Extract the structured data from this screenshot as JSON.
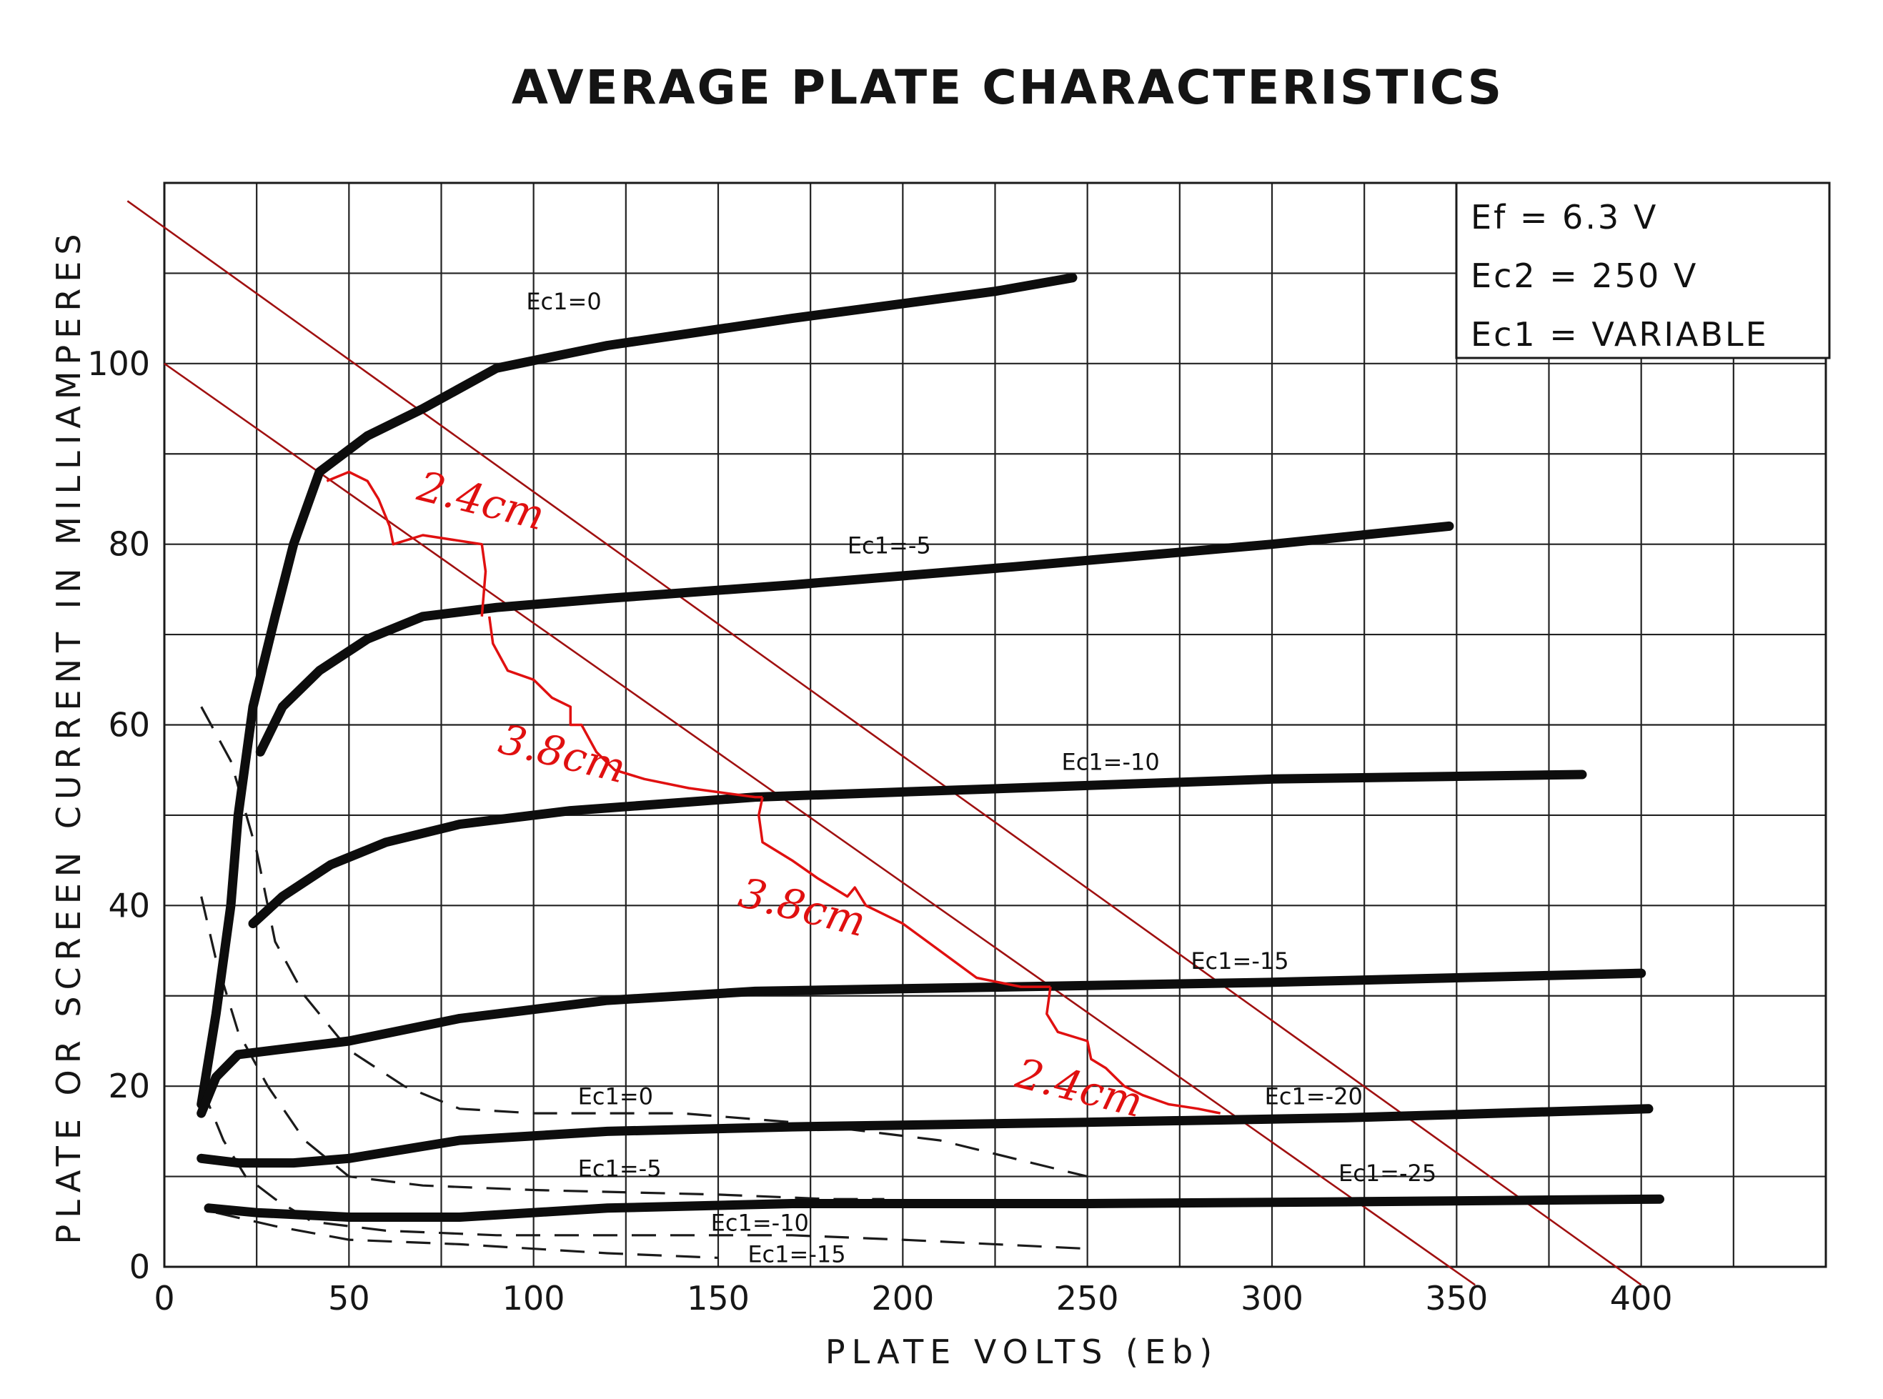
{
  "chart_data": {
    "type": "line",
    "title": "AVERAGE PLATE CHARACTERISTICS",
    "xlabel": "PLATE VOLTS (Eb)",
    "ylabel": "PLATE OR SCREEN CURRENT IN MILLIAMPERES",
    "xlim": [
      0,
      450
    ],
    "ylim": [
      0,
      120
    ],
    "x_ticks": [
      0,
      50,
      100,
      150,
      200,
      250,
      300,
      350,
      400
    ],
    "x_tick_labels": [
      "0",
      "50",
      "100",
      "150",
      "200",
      "250",
      "300",
      "350",
      "400"
    ],
    "y_ticks": [
      0,
      20,
      40,
      60,
      80,
      100
    ],
    "y_tick_labels": [
      "0",
      "20",
      "40",
      "60",
      "80",
      "100"
    ],
    "grid": true,
    "parameters": [
      "Ef  =  6.3 V",
      "Ec2  =  250 V",
      "Ec1 = VARIABLE"
    ],
    "plate_curves": [
      {
        "label": "Ec1=0",
        "label_at": [
          98,
          106
        ],
        "points": [
          [
            10,
            18
          ],
          [
            14,
            28
          ],
          [
            18,
            40
          ],
          [
            20,
            50
          ],
          [
            24,
            62
          ],
          [
            30,
            72
          ],
          [
            35,
            80
          ],
          [
            42,
            88
          ],
          [
            55,
            92
          ],
          [
            70,
            95
          ],
          [
            90,
            99.5
          ],
          [
            120,
            102
          ],
          [
            170,
            105
          ],
          [
            225,
            108
          ],
          [
            246,
            109.5
          ]
        ]
      },
      {
        "label": "Ec1=-5",
        "label_at": [
          185,
          79
        ],
        "points": [
          [
            26,
            57
          ],
          [
            32,
            62
          ],
          [
            42,
            66
          ],
          [
            55,
            69.5
          ],
          [
            70,
            72
          ],
          [
            90,
            73
          ],
          [
            120,
            74
          ],
          [
            170,
            75.5
          ],
          [
            230,
            77.5
          ],
          [
            300,
            80
          ],
          [
            348,
            82
          ]
        ]
      },
      {
        "label": "Ec1=-10",
        "label_at": [
          243,
          55
        ],
        "points": [
          [
            24,
            38
          ],
          [
            32,
            41
          ],
          [
            45,
            44.5
          ],
          [
            60,
            47
          ],
          [
            80,
            49
          ],
          [
            110,
            50.5
          ],
          [
            160,
            52
          ],
          [
            230,
            53
          ],
          [
            300,
            54
          ],
          [
            384,
            54.5
          ]
        ]
      },
      {
        "label": "Ec1=-15",
        "label_at": [
          278,
          33
        ],
        "points": [
          [
            10,
            17
          ],
          [
            14,
            21
          ],
          [
            20,
            23.5
          ],
          [
            30,
            24
          ],
          [
            50,
            25
          ],
          [
            80,
            27.5
          ],
          [
            120,
            29.5
          ],
          [
            160,
            30.5
          ],
          [
            230,
            31
          ],
          [
            300,
            31.5
          ],
          [
            400,
            32.5
          ]
        ]
      },
      {
        "label": "Ec1=-20",
        "label_at": [
          298,
          18
        ],
        "points": [
          [
            10,
            12
          ],
          [
            20,
            11.5
          ],
          [
            35,
            11.5
          ],
          [
            50,
            12
          ],
          [
            80,
            14
          ],
          [
            120,
            15
          ],
          [
            170,
            15.5
          ],
          [
            250,
            16
          ],
          [
            320,
            16.5
          ],
          [
            402,
            17.5
          ]
        ]
      },
      {
        "label": "Ec1=-25",
        "label_at": [
          318,
          9.5
        ],
        "points": [
          [
            12,
            6.5
          ],
          [
            25,
            6
          ],
          [
            50,
            5.5
          ],
          [
            80,
            5.5
          ],
          [
            120,
            6.5
          ],
          [
            170,
            7
          ],
          [
            250,
            7
          ],
          [
            320,
            7.2
          ],
          [
            405,
            7.5
          ]
        ]
      }
    ],
    "screen_curves": [
      {
        "label": "Ec1=0",
        "label_at": [
          112,
          18
        ],
        "points": [
          [
            10,
            62
          ],
          [
            18,
            56
          ],
          [
            25,
            46
          ],
          [
            30,
            36
          ],
          [
            38,
            30
          ],
          [
            50,
            24
          ],
          [
            65,
            20
          ],
          [
            80,
            17.5
          ],
          [
            100,
            17
          ],
          [
            140,
            17
          ],
          [
            170,
            16
          ],
          [
            210,
            14
          ],
          [
            250,
            10
          ]
        ]
      },
      {
        "label": "Ec1=-5",
        "label_at": [
          112,
          10
        ],
        "points": [
          [
            10,
            41
          ],
          [
            14,
            34
          ],
          [
            20,
            26
          ],
          [
            28,
            20
          ],
          [
            38,
            14
          ],
          [
            50,
            10
          ],
          [
            70,
            9
          ],
          [
            100,
            8.5
          ],
          [
            150,
            8
          ],
          [
            180,
            7.5
          ],
          [
            195,
            7.5
          ]
        ]
      },
      {
        "label": "Ec1=-10",
        "label_at": [
          148,
          4
        ],
        "points": [
          [
            10,
            20
          ],
          [
            16,
            14
          ],
          [
            22,
            10
          ],
          [
            30,
            7.5
          ],
          [
            40,
            5
          ],
          [
            60,
            4
          ],
          [
            90,
            3.5
          ],
          [
            130,
            3.5
          ],
          [
            170,
            3.5
          ],
          [
            200,
            3
          ],
          [
            250,
            2
          ]
        ]
      },
      {
        "label": "Ec1=-15",
        "label_at": [
          158,
          0.5
        ],
        "points": [
          [
            14,
            6
          ],
          [
            30,
            4.5
          ],
          [
            50,
            3
          ],
          [
            80,
            2.5
          ],
          [
            120,
            1.5
          ],
          [
            150,
            1
          ]
        ]
      }
    ],
    "load_lines": [
      {
        "points": [
          [
            -10,
            118
          ],
          [
            400,
            -2
          ]
        ]
      },
      {
        "points": [
          [
            0,
            100
          ],
          [
            355,
            -2
          ]
        ]
      }
    ],
    "annotations": [
      {
        "text": "2.4cm",
        "label_at": [
          68,
          85
        ]
      },
      {
        "text": "3.8cm",
        "label_at": [
          90,
          57
        ]
      },
      {
        "text": "3.8cm",
        "label_at": [
          155,
          40
        ]
      },
      {
        "text": "2.4cm",
        "label_at": [
          230,
          20
        ]
      }
    ],
    "annotation_brackets": [
      {
        "points": [
          [
            44,
            87
          ],
          [
            50,
            88
          ],
          [
            55,
            87
          ],
          [
            58,
            85
          ],
          [
            61,
            82
          ],
          [
            62,
            80
          ],
          [
            70,
            81
          ],
          [
            86,
            80
          ],
          [
            87,
            77
          ],
          [
            86,
            72
          ]
        ]
      },
      {
        "points": [
          [
            88,
            72
          ],
          [
            89,
            69
          ],
          [
            93,
            66
          ],
          [
            100,
            65
          ],
          [
            105,
            63
          ],
          [
            110,
            62
          ],
          [
            110,
            60
          ],
          [
            113,
            60
          ],
          [
            117,
            57
          ],
          [
            122,
            55
          ],
          [
            130,
            54
          ],
          [
            142,
            53
          ],
          [
            160,
            52
          ],
          [
            162,
            52
          ]
        ]
      },
      {
        "points": [
          [
            162,
            52
          ],
          [
            161,
            50
          ],
          [
            162,
            47
          ],
          [
            170,
            45
          ],
          [
            177,
            43
          ],
          [
            185,
            41
          ],
          [
            187,
            42
          ],
          [
            190,
            40
          ],
          [
            200,
            38
          ],
          [
            210,
            35
          ],
          [
            220,
            32
          ],
          [
            232,
            31
          ],
          [
            238,
            31
          ],
          [
            240,
            31
          ]
        ]
      },
      {
        "points": [
          [
            240,
            31
          ],
          [
            239,
            28
          ],
          [
            242,
            26
          ],
          [
            250,
            25
          ],
          [
            251,
            23
          ],
          [
            255,
            22
          ],
          [
            260,
            20
          ],
          [
            265,
            19
          ],
          [
            272,
            18
          ],
          [
            280,
            17.5
          ],
          [
            286,
            17
          ]
        ]
      }
    ]
  }
}
